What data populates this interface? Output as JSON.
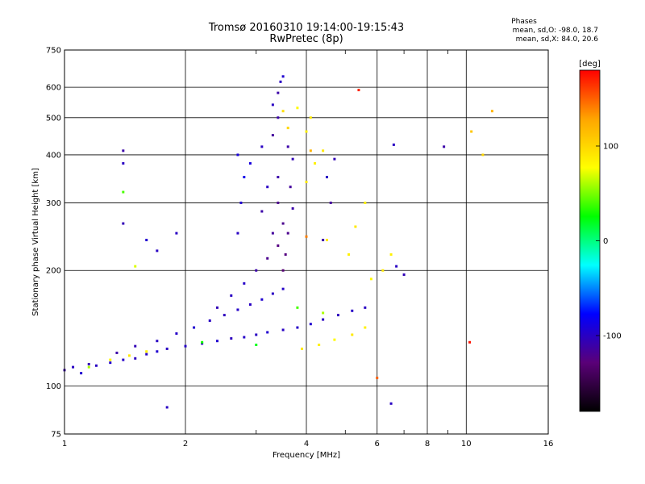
{
  "header": {
    "title": "Tromsø 20160310 19:14:00-19:15:43",
    "subtitle": "RwPretec (8p)",
    "phases_title": "Phases",
    "phases_o": "mean, sd,O: -98.0, 18.7",
    "phases_x": "mean, sd,X:  84.0, 20.6"
  },
  "colorbar": {
    "label": "[deg]",
    "min": -180,
    "max": 180,
    "ticks": [
      100,
      0,
      -100
    ],
    "tick_labels": [
      "100",
      "0",
      "-100"
    ],
    "colors": [
      "#ff0000",
      "#ffa500",
      "#ffff00",
      "#00ff00",
      "#00ffff",
      "#0000ff",
      "#5a0078",
      "#000000"
    ]
  },
  "chart_data": {
    "type": "scatter",
    "title": "Tromsø 20160310 19:14:00-19:15:43",
    "subtitle": "RwPretec (8p)",
    "xlabel": "Frequency [MHz]",
    "ylabel": "Stationary phase Virtual Height [km]",
    "x_scale": "log",
    "y_scale": "log",
    "xlim": [
      1,
      16
    ],
    "ylim": [
      75,
      750
    ],
    "x_ticks": [
      1,
      2,
      4,
      6,
      8,
      10,
      16
    ],
    "x_tick_labels": [
      "1",
      "2",
      "4",
      "6",
      "8",
      "10",
      "16"
    ],
    "y_ticks": [
      75,
      100,
      200,
      300,
      400,
      500,
      600,
      750
    ],
    "y_tick_labels": [
      "75",
      "100",
      "200",
      "300",
      "400",
      "500",
      "600",
      "750"
    ],
    "grid": true,
    "series": [
      {
        "label_hint": "O-mode (phase near -100 deg)",
        "points": [
          [
            1.0,
            110,
            -110
          ],
          [
            1.05,
            112,
            -100
          ],
          [
            1.1,
            108,
            -95
          ],
          [
            1.15,
            114,
            -105
          ],
          [
            1.2,
            113,
            -100
          ],
          [
            1.3,
            115,
            -95
          ],
          [
            1.4,
            117,
            -98
          ],
          [
            1.5,
            118,
            -102
          ],
          [
            1.6,
            121,
            -100
          ],
          [
            1.7,
            123,
            -95
          ],
          [
            1.8,
            125,
            -100
          ],
          [
            2.0,
            127,
            -98
          ],
          [
            2.2,
            129,
            -100
          ],
          [
            2.4,
            131,
            -95
          ],
          [
            2.6,
            133,
            -102
          ],
          [
            2.8,
            134,
            -98
          ],
          [
            3.0,
            136,
            -100
          ],
          [
            3.2,
            138,
            -95
          ],
          [
            3.5,
            140,
            -100
          ],
          [
            3.8,
            142,
            -98
          ],
          [
            4.1,
            145,
            -95
          ],
          [
            4.4,
            149,
            -100
          ],
          [
            4.8,
            153,
            -102
          ],
          [
            5.2,
            157,
            -98
          ],
          [
            5.6,
            160,
            -100
          ],
          [
            1.35,
            122,
            -110
          ],
          [
            1.5,
            127,
            -105
          ],
          [
            1.7,
            131,
            -100
          ],
          [
            1.9,
            137,
            -98
          ],
          [
            2.1,
            142,
            -95
          ],
          [
            2.3,
            148,
            -100
          ],
          [
            2.5,
            153,
            -102
          ],
          [
            2.7,
            158,
            -98
          ],
          [
            2.9,
            163,
            -100
          ],
          [
            3.1,
            168,
            -95
          ],
          [
            3.3,
            174,
            -100
          ],
          [
            3.5,
            179,
            -98
          ],
          [
            2.4,
            160,
            -105
          ],
          [
            2.6,
            172,
            -100
          ],
          [
            2.8,
            185,
            -98
          ],
          [
            3.0,
            200,
            -110
          ],
          [
            3.2,
            215,
            -120
          ],
          [
            3.4,
            232,
            -125
          ],
          [
            3.3,
            250,
            -115
          ],
          [
            3.5,
            265,
            -120
          ],
          [
            3.1,
            285,
            -110
          ],
          [
            3.4,
            300,
            -120
          ],
          [
            3.2,
            330,
            -100
          ],
          [
            3.4,
            350,
            -110
          ],
          [
            2.9,
            380,
            -90
          ],
          [
            3.1,
            420,
            -100
          ],
          [
            3.3,
            450,
            -115
          ],
          [
            3.4,
            500,
            -110
          ],
          [
            3.3,
            540,
            -100
          ],
          [
            3.4,
            580,
            -110
          ],
          [
            3.45,
            620,
            -100
          ],
          [
            3.5,
            640,
            -95
          ],
          [
            2.7,
            400,
            -90
          ],
          [
            2.8,
            350,
            -85
          ],
          [
            2.75,
            300,
            -95
          ],
          [
            2.7,
            250,
            -100
          ],
          [
            3.6,
            420,
            -110
          ],
          [
            3.7,
            390,
            -105
          ],
          [
            3.65,
            330,
            -115
          ],
          [
            3.7,
            290,
            -110
          ],
          [
            3.6,
            250,
            -120
          ],
          [
            3.55,
            220,
            -125
          ],
          [
            3.5,
            200,
            -130
          ],
          [
            4.4,
            240,
            -110
          ],
          [
            4.6,
            300,
            -115
          ],
          [
            4.5,
            350,
            -100
          ],
          [
            4.7,
            390,
            -105
          ],
          [
            1.6,
            240,
            -95
          ],
          [
            1.7,
            225,
            -100
          ],
          [
            1.9,
            250,
            -100
          ],
          [
            1.4,
            410,
            -110
          ],
          [
            1.4,
            380,
            -100
          ],
          [
            1.4,
            265,
            -105
          ],
          [
            1.8,
            88,
            -100
          ],
          [
            6.5,
            90,
            -100
          ],
          [
            8.8,
            420,
            -110
          ],
          [
            6.7,
            205,
            -100
          ],
          [
            7.0,
            195,
            -105
          ],
          [
            6.6,
            425,
            -100
          ]
        ]
      },
      {
        "label_hint": "X-mode (phase near 84 deg)",
        "points": [
          [
            1.15,
            112,
            60
          ],
          [
            1.3,
            117,
            80
          ],
          [
            1.45,
            120,
            90
          ],
          [
            1.6,
            123,
            85
          ],
          [
            3.9,
            125,
            90
          ],
          [
            4.3,
            128,
            85
          ],
          [
            4.7,
            132,
            80
          ],
          [
            5.2,
            136,
            90
          ],
          [
            5.6,
            142,
            85
          ],
          [
            4.0,
            340,
            90
          ],
          [
            4.2,
            380,
            85
          ],
          [
            4.4,
            410,
            90
          ],
          [
            4.0,
            460,
            85
          ],
          [
            4.1,
            500,
            90
          ],
          [
            3.8,
            530,
            80
          ],
          [
            4.5,
            240,
            90
          ],
          [
            5.1,
            220,
            85
          ],
          [
            5.3,
            260,
            90
          ],
          [
            5.6,
            300,
            85
          ],
          [
            5.8,
            190,
            80
          ],
          [
            6.2,
            200,
            90
          ],
          [
            6.5,
            220,
            85
          ],
          [
            3.5,
            520,
            95
          ],
          [
            3.6,
            470,
            100
          ],
          [
            11.6,
            520,
            120
          ],
          [
            10.3,
            460,
            110
          ],
          [
            11.0,
            400,
            100
          ]
        ]
      },
      {
        "label_hint": "misc",
        "points": [
          [
            1.4,
            320,
            40
          ],
          [
            1.5,
            205,
            70
          ],
          [
            2.2,
            130,
            30
          ],
          [
            3.0,
            128,
            20
          ],
          [
            4.0,
            245,
            140
          ],
          [
            5.4,
            590,
            170
          ],
          [
            10.2,
            130,
            175
          ],
          [
            4.1,
            410,
            120
          ],
          [
            6.0,
            105,
            150
          ],
          [
            4.4,
            155,
            60
          ],
          [
            3.8,
            160,
            40
          ]
        ]
      }
    ]
  }
}
